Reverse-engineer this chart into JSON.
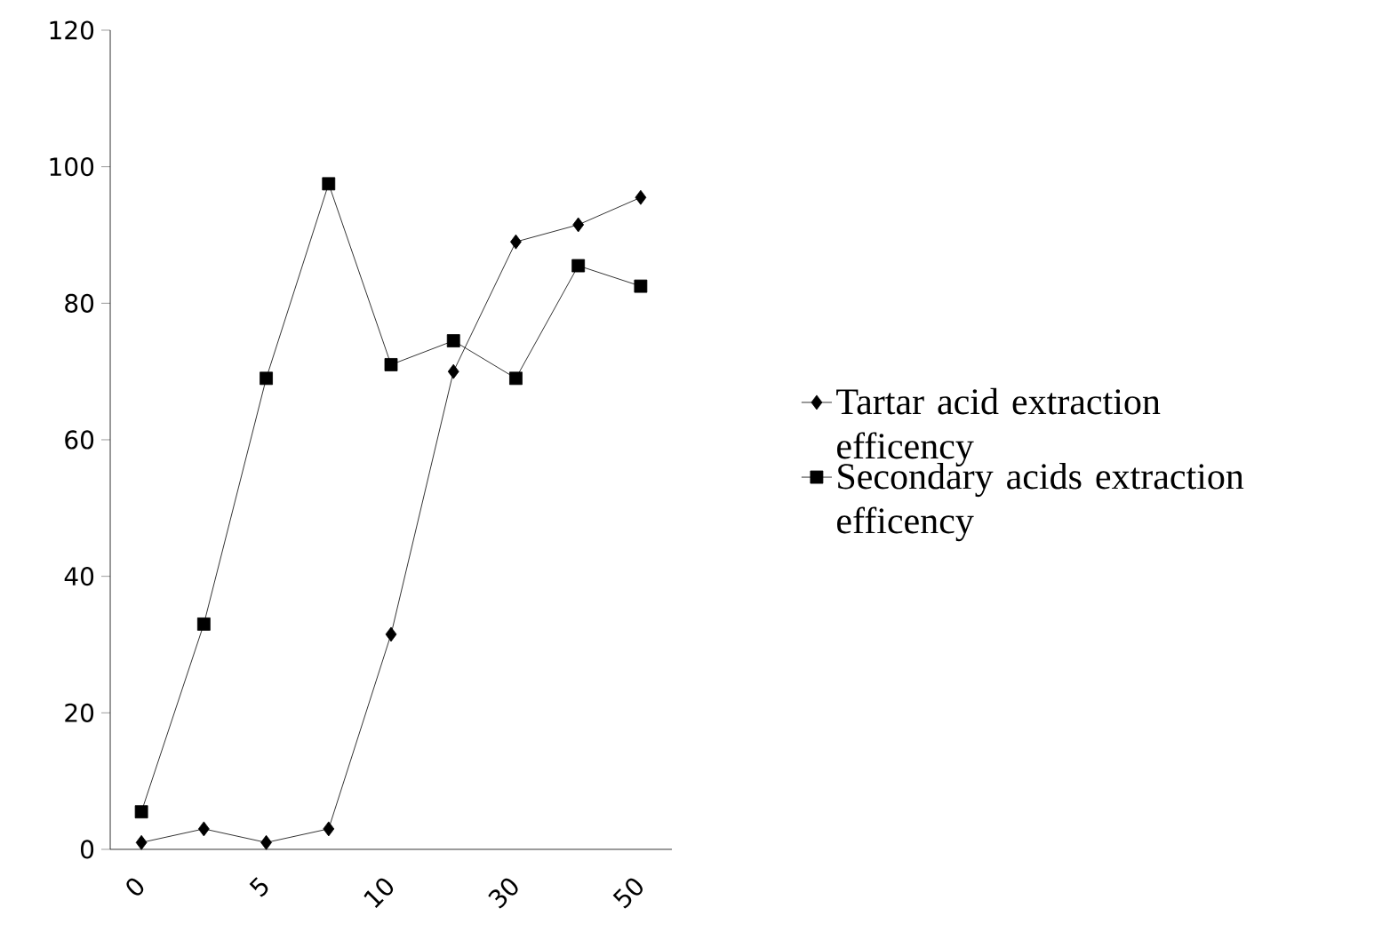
{
  "chart_data": {
    "type": "line",
    "categories": [
      "0",
      null,
      "5",
      null,
      "10",
      null,
      "30",
      null,
      "50"
    ],
    "ylim": [
      0,
      120
    ],
    "yticks": [
      0,
      20,
      40,
      60,
      80,
      100,
      120
    ],
    "legend": "right",
    "grid": false,
    "line_style": "solid",
    "series": [
      {
        "name": "Tartar acid extraction efficency",
        "color": "#000000",
        "marker": "diamond",
        "values": [
          1,
          3,
          1,
          3,
          31.5,
          70,
          89,
          91.5,
          95.5
        ]
      },
      {
        "name": "Secondary acids extraction efficency",
        "color": "#000000",
        "marker": "square",
        "values": [
          5.5,
          33,
          69,
          97.5,
          71,
          74.5,
          69,
          85.5,
          82.5
        ]
      }
    ]
  }
}
